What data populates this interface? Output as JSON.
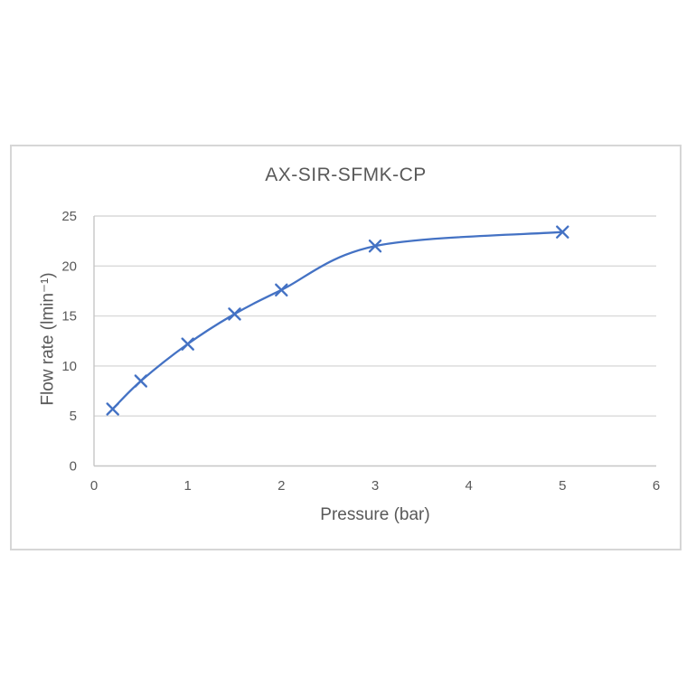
{
  "chart_data": {
    "type": "line",
    "title": "AX-SIR-SFMK-CP",
    "xlabel": "Pressure (bar)",
    "ylabel": "Flow rate (lmin⁻¹)",
    "series": [
      {
        "name": "AX-SIR-SFMK-CP",
        "x": [
          0.2,
          0.5,
          1,
          1.5,
          2,
          3,
          5
        ],
        "y": [
          5.7,
          8.5,
          12.2,
          15.2,
          17.6,
          22,
          23.4
        ]
      }
    ],
    "xlim": [
      0,
      6
    ],
    "ylim": [
      0,
      25
    ],
    "x_ticks": [
      0,
      1,
      2,
      3,
      4,
      5,
      6
    ],
    "y_ticks": [
      0,
      5,
      10,
      15,
      20,
      25
    ],
    "grid": "horizontal-major",
    "legend": "none",
    "line_style": "smooth",
    "marker": "x",
    "colors": {
      "series": "#4472C4",
      "gridline": "#D9D9D9",
      "axis_line": "#C6C6C6",
      "text": "#595959",
      "frame_border": "#D6D6D6",
      "background": "#FFFFFF"
    }
  }
}
